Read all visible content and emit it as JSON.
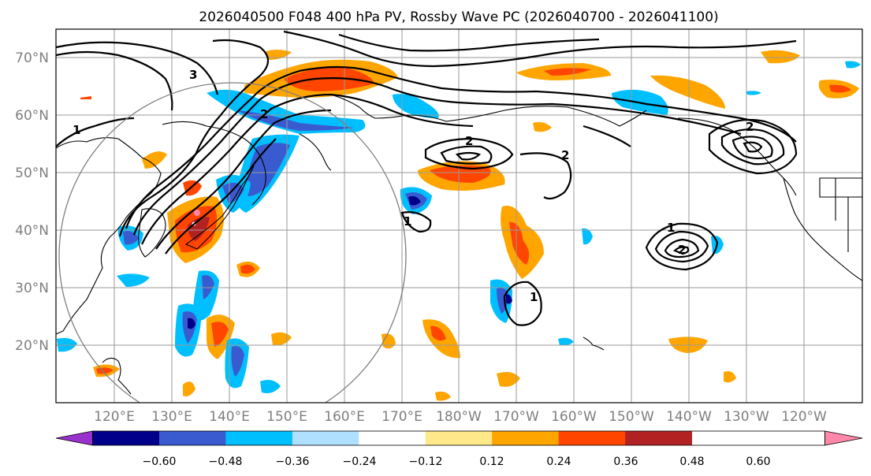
{
  "title": "2026040500 F048 400 hPa PV, Rossby Wave PC (2026040700 - 2026041100)",
  "lat_labels": [
    "70°N",
    "60°N",
    "50°N",
    "40°N",
    "30°N",
    "20°N"
  ],
  "lon_labels": [
    "120°E",
    "130°E",
    "140°E",
    "150°E",
    "160°E",
    "170°E",
    "180°W",
    "170°W",
    "160°W",
    "150°W",
    "140°W",
    "130°W",
    "120°W"
  ],
  "contour_labels": [
    "3",
    "1",
    "2",
    "2",
    "2",
    "2",
    "2",
    "1",
    "1",
    "1"
  ],
  "colorbar": {
    "ticks": [
      "−0.60",
      "−0.48",
      "−0.36",
      "−0.24",
      "−0.12",
      "0.12",
      "0.24",
      "0.36",
      "0.48",
      "0.60"
    ],
    "colors": [
      "#9932cc",
      "#00008b",
      "#3a5bd0",
      "#00bfff",
      "#b0e0ff",
      "#ffffff",
      "#ffe88a",
      "#ffa500",
      "#ff4500",
      "#b22222",
      "#ff88aa"
    ]
  }
}
